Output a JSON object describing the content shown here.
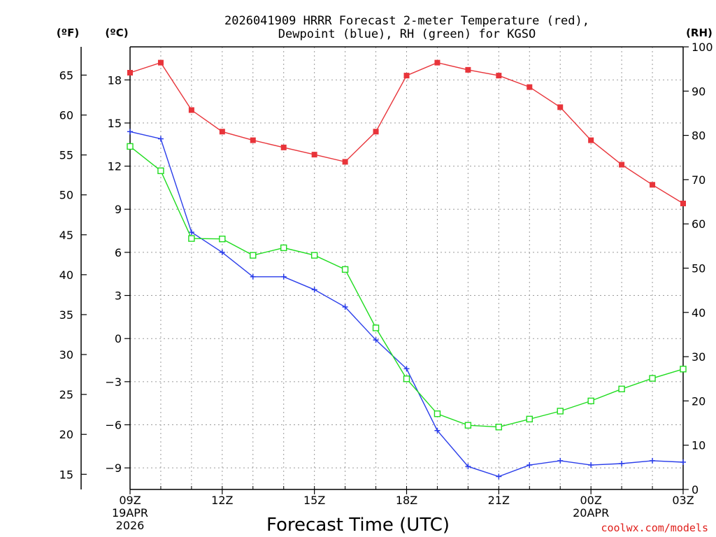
{
  "chart_data": {
    "type": "line",
    "title_lines": [
      "2026041909 HRRR Forecast 2-meter Temperature (red),",
      "Dewpoint (blue), RH (green) for KGSO"
    ],
    "xlabel": "Forecast Time (UTC)",
    "credit": "coolwx.com/models",
    "units": {
      "fahrenheit": "(ºF)",
      "celsius": "(ºC)",
      "rh": "(RH)"
    },
    "x_hours": [
      0,
      1,
      2,
      3,
      4,
      5,
      6,
      7,
      8,
      9,
      10,
      11,
      12,
      13,
      14,
      15,
      16,
      17,
      18
    ],
    "x_ticks": [
      {
        "hour": 0,
        "lines": [
          "09Z",
          "19APR",
          "2026"
        ]
      },
      {
        "hour": 3,
        "lines": [
          "12Z"
        ]
      },
      {
        "hour": 6,
        "lines": [
          "15Z"
        ]
      },
      {
        "hour": 9,
        "lines": [
          "18Z"
        ]
      },
      {
        "hour": 12,
        "lines": [
          "21Z"
        ]
      },
      {
        "hour": 15,
        "lines": [
          "00Z",
          "20APR"
        ]
      },
      {
        "hour": 18,
        "lines": [
          "03Z"
        ]
      }
    ],
    "celsius_axis": {
      "range": [
        -10.5,
        20.3
      ],
      "ticks": [
        "-9",
        "-6",
        "-3",
        "0",
        "3",
        "6",
        "9",
        "12",
        "15",
        "18"
      ]
    },
    "fahrenheit_ticks": [
      "15",
      "20",
      "25",
      "30",
      "35",
      "40",
      "45",
      "50",
      "55",
      "60",
      "65"
    ],
    "rh_axis": {
      "range": [
        0,
        100
      ],
      "ticks": [
        "0",
        "10",
        "20",
        "30",
        "40",
        "50",
        "60",
        "70",
        "80",
        "90",
        "100"
      ]
    },
    "series": [
      {
        "name": "2-meter Temperature",
        "axis": "celsius",
        "color": "#e8343a",
        "marker": "filled-square",
        "values": [
          18.5,
          19.2,
          15.9,
          14.4,
          13.8,
          13.3,
          12.8,
          12.3,
          14.4,
          18.3,
          19.2,
          18.7,
          18.3,
          17.5,
          16.1,
          13.8,
          12.1,
          10.7,
          9.4
        ]
      },
      {
        "name": "Dewpoint",
        "axis": "celsius",
        "color": "#2a3dea",
        "marker": "plus",
        "values": [
          14.4,
          13.9,
          7.4,
          6.0,
          4.3,
          4.3,
          3.4,
          2.2,
          -0.1,
          -2.1,
          -6.4,
          -8.9,
          -9.6,
          -8.8,
          -8.5,
          -8.8,
          -8.7,
          -8.5,
          -8.6
        ]
      },
      {
        "name": "RH",
        "axis": "rh",
        "color": "#1fdc1f",
        "marker": "open-square",
        "values": [
          77.5,
          72.0,
          56.7,
          56.6,
          52.9,
          54.6,
          52.9,
          49.7,
          36.5,
          25.0,
          17.1,
          14.5,
          14.1,
          15.9,
          17.7,
          20.0,
          22.7,
          25.1,
          27.2
        ]
      }
    ]
  }
}
